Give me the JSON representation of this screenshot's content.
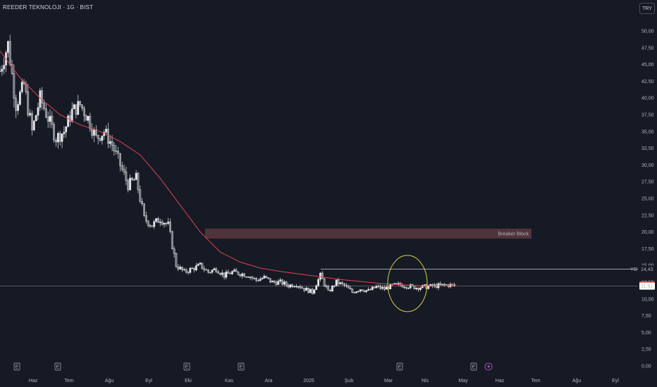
{
  "header": {
    "title": "REEDER TEKNOLOJI · 1G · BIST",
    "currency": "TRY"
  },
  "colors": {
    "background": "#161a25",
    "candle": "#e8e8ec",
    "moving_average": "#e0444f",
    "zone_fill": "#5b3a40",
    "highlight_ellipse": "#d8cf4a",
    "price_line": "#c9cad0",
    "ma_badge": "#e0444f",
    "events": "#b2b5be",
    "flash": "#c94fd0"
  },
  "chart_data": {
    "type": "candlestick",
    "title": "REEDER TEKNOLOJI · 1G · BIST",
    "y_axis": {
      "ticks": [
        "0,00",
        "2,50",
        "5,00",
        "7,50",
        "10,00",
        "12,50",
        "15,00",
        "17,50",
        "20,00",
        "22,50",
        "25,00",
        "27,50",
        "30,00",
        "32,50",
        "35,00",
        "37,50",
        "40,00",
        "42,50",
        "45,00",
        "47,50",
        "50,00"
      ],
      "ylim": [
        0,
        52.5
      ]
    },
    "x_axis": {
      "ticks": [
        "Haz",
        "Tem",
        "Ağu",
        "Eyl",
        "Eki",
        "Kas",
        "Ara",
        "2025",
        "Şub",
        "Mar",
        "Nis",
        "May",
        "Haz",
        "Tem",
        "Ağu",
        "Eyl"
      ]
    },
    "price_series": {
      "x_month": [
        0.0,
        0.2,
        0.4,
        0.6,
        0.8,
        1.0,
        1.2,
        1.4,
        1.6,
        1.8,
        2.0,
        2.2,
        2.4,
        2.6,
        2.8,
        3.0,
        3.2,
        3.4,
        3.6,
        3.8,
        4.0,
        4.2,
        4.4,
        4.6,
        4.8,
        5.0,
        5.2,
        5.4,
        5.6,
        5.8,
        6.0,
        6.2,
        6.4,
        6.6,
        6.8,
        7.0,
        7.2,
        7.4,
        7.6,
        7.8,
        8.0,
        8.2,
        8.4,
        8.6,
        8.8,
        9.0,
        9.2,
        9.4,
        9.6,
        9.8,
        10.0,
        10.2,
        10.4,
        10.6,
        10.8,
        11.0,
        11.2,
        11.4
      ],
      "close": [
        44,
        48,
        39,
        42,
        35,
        40,
        37,
        34,
        35,
        38,
        39,
        37,
        34,
        35,
        33,
        30,
        27,
        28,
        22,
        21,
        22,
        21,
        15,
        14,
        14.5,
        15,
        14,
        14.5,
        13.5,
        14,
        13.8,
        13.5,
        12.8,
        13.2,
        12.5,
        12.5,
        12,
        12.2,
        11.5,
        11,
        13.5,
        11,
        12.5,
        12,
        11,
        11.5,
        11.2,
        11.8,
        11.5,
        12,
        12.1,
        11.9,
        11.7,
        11.8,
        11.9,
        12.0,
        12.1,
        11.91
      ]
    },
    "moving_average": {
      "x_month": [
        -0.8,
        0.0,
        0.5,
        1.0,
        1.5,
        2.0,
        2.5,
        3.0,
        3.5,
        4.0,
        4.5,
        5.0,
        5.5,
        6.0,
        6.5,
        7.0,
        7.5,
        8.0,
        8.5,
        9.0,
        9.5,
        10.0,
        10.5,
        11.0,
        11.4
      ],
      "values": [
        53,
        47,
        43,
        40,
        37.5,
        36,
        35,
        33.5,
        31.5,
        28,
        24,
        20,
        17,
        15.5,
        14.6,
        14.1,
        13.7,
        13.3,
        12.9,
        12.6,
        12.3,
        12.1,
        11.95,
        12.0,
        12.11
      ]
    },
    "annotations": {
      "zone_label": "Breaker Block",
      "zone_range": [
        19.0,
        20.5
      ],
      "level_label": "YO",
      "level_value": "14,43",
      "ma_value": "12,11",
      "last_price": "11,91",
      "event_marker": "E",
      "event_count": 7
    },
    "grid": false
  }
}
